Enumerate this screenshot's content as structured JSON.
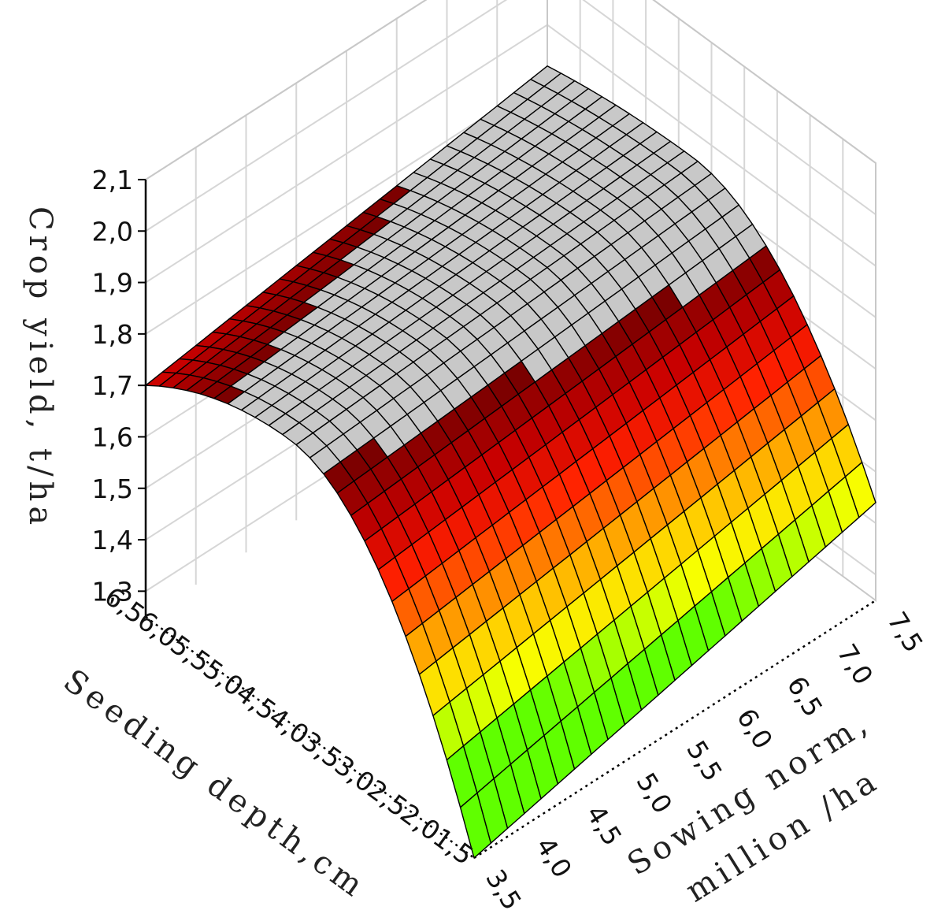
{
  "chart_data": {
    "type": "surface3d",
    "zlabel": "Crop yield, t/ha",
    "xlabel": "Seeding depth,cm",
    "ylabel_line1": "Sowing norm,",
    "ylabel_line2": "million /ha",
    "z_ticks": [
      "2,1",
      "2,0",
      "1,9",
      "1,8",
      "1,7",
      "1,6",
      "1,5",
      "1,4",
      "1,3"
    ],
    "z_tick_values": [
      2.1,
      2.0,
      1.9,
      1.8,
      1.7,
      1.6,
      1.5,
      1.4,
      1.3
    ],
    "x_ticks": [
      "6,5",
      "6,0",
      "5,5",
      "5,0",
      "4,5",
      "4,0",
      "3,5",
      "3,0",
      "2,5",
      "2,0",
      "1,5"
    ],
    "x_tick_values": [
      6.5,
      6.0,
      5.5,
      5.0,
      4.5,
      4.0,
      3.5,
      3.0,
      2.5,
      2.0,
      1.5
    ],
    "y_ticks": [
      "3,5",
      "4,0",
      "4,5",
      "5,0",
      "5,5",
      "6,0",
      "6,5",
      "7,0",
      "7,5"
    ],
    "y_tick_values": [
      3.5,
      4.0,
      4.5,
      5.0,
      5.5,
      6.0,
      6.5,
      7.0,
      7.5
    ],
    "x_range": [
      1.5,
      6.5
    ],
    "y_range": [
      3.5,
      7.5
    ],
    "z_range": [
      1.25,
      2.1
    ],
    "surface": {
      "peak_depth_cm": 4.3,
      "yield_at_peak": {
        "sowing_norm_3_5": 1.8,
        "sowing_norm_7_5": 1.85
      },
      "yield_at_depth_6_5": {
        "sowing_norm_3_5": 1.7,
        "sowing_norm_7_5": 1.82
      },
      "yield_at_depth_1_5": {
        "sowing_norm_3_5": 1.25,
        "sowing_norm_7_5": 1.44
      }
    },
    "grid": true,
    "colormap": [
      "#7a0000",
      "#c80000",
      "#ff2000",
      "#ff8000",
      "#ffd000",
      "#f8ff00",
      "#60ff00"
    ],
    "above_range_color": "#c8c8c8"
  }
}
